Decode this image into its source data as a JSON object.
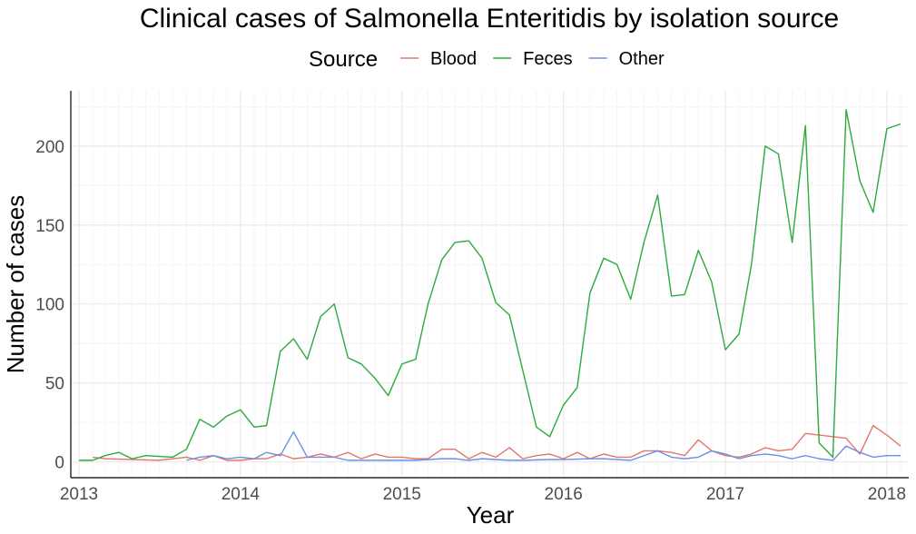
{
  "chart_data": {
    "type": "line",
    "title": "Clinical cases of Salmonella Enteritidis by isolation source",
    "xlabel": "Year",
    "ylabel": "Number of cases",
    "legend_title": "Source",
    "legend_position": "top",
    "xlim": [
      "2013-01-01",
      "2018-02-01"
    ],
    "ylim": [
      -10,
      235
    ],
    "x_ticks": [
      {
        "label": "2013",
        "date": "2013-01-01"
      },
      {
        "label": "2014",
        "date": "2014-01-01"
      },
      {
        "label": "2015",
        "date": "2015-01-01"
      },
      {
        "label": "2016",
        "date": "2016-01-01"
      },
      {
        "label": "2017",
        "date": "2017-01-01"
      },
      {
        "label": "2018",
        "date": "2018-01-01"
      }
    ],
    "y_ticks": [
      0,
      50,
      100,
      150,
      200
    ],
    "grid": true,
    "series": [
      {
        "name": "Blood",
        "color": "#e5756b",
        "points": [
          [
            "2013-02-01",
            3
          ],
          [
            "2013-03-01",
            2
          ],
          [
            "2013-05-01",
            1.5
          ],
          [
            "2013-07-01",
            1
          ],
          [
            "2013-09-01",
            3
          ],
          [
            "2013-10-01",
            1
          ],
          [
            "2013-11-01",
            4
          ],
          [
            "2013-12-01",
            1
          ],
          [
            "2014-01-01",
            1
          ],
          [
            "2014-02-01",
            2
          ],
          [
            "2014-03-01",
            2
          ],
          [
            "2014-04-01",
            5
          ],
          [
            "2014-05-01",
            2
          ],
          [
            "2014-06-01",
            3
          ],
          [
            "2014-07-01",
            5
          ],
          [
            "2014-08-01",
            3
          ],
          [
            "2014-09-01",
            6
          ],
          [
            "2014-10-01",
            2
          ],
          [
            "2014-11-01",
            5
          ],
          [
            "2014-12-01",
            3
          ],
          [
            "2015-01-01",
            3
          ],
          [
            "2015-02-01",
            2
          ],
          [
            "2015-03-01",
            2
          ],
          [
            "2015-04-01",
            8
          ],
          [
            "2015-05-01",
            8
          ],
          [
            "2015-06-01",
            2
          ],
          [
            "2015-07-01",
            6
          ],
          [
            "2015-08-01",
            3
          ],
          [
            "2015-09-01",
            9
          ],
          [
            "2015-10-01",
            2
          ],
          [
            "2015-11-01",
            4
          ],
          [
            "2015-12-01",
            5
          ],
          [
            "2016-01-01",
            2
          ],
          [
            "2016-02-01",
            6
          ],
          [
            "2016-03-01",
            2
          ],
          [
            "2016-04-01",
            5
          ],
          [
            "2016-05-01",
            3
          ],
          [
            "2016-06-01",
            3
          ],
          [
            "2016-07-01",
            7
          ],
          [
            "2016-08-01",
            7
          ],
          [
            "2016-09-01",
            6
          ],
          [
            "2016-10-01",
            4
          ],
          [
            "2016-11-01",
            14
          ],
          [
            "2016-12-01",
            7
          ],
          [
            "2017-01-01",
            4
          ],
          [
            "2017-02-01",
            3
          ],
          [
            "2017-03-01",
            5
          ],
          [
            "2017-04-01",
            9
          ],
          [
            "2017-05-01",
            7
          ],
          [
            "2017-06-01",
            8
          ],
          [
            "2017-07-01",
            18
          ],
          [
            "2017-08-01",
            17
          ],
          [
            "2017-09-01",
            16
          ],
          [
            "2017-10-01",
            15
          ],
          [
            "2017-11-01",
            5
          ],
          [
            "2017-12-01",
            23
          ],
          [
            "2018-01-01",
            17
          ],
          [
            "2018-02-01",
            10
          ]
        ]
      },
      {
        "name": "Feces",
        "color": "#2aab3e",
        "points": [
          [
            "2013-01-01",
            1
          ],
          [
            "2013-02-01",
            1
          ],
          [
            "2013-03-01",
            4
          ],
          [
            "2013-04-01",
            6
          ],
          [
            "2013-05-01",
            2
          ],
          [
            "2013-06-01",
            4
          ],
          [
            "2013-08-01",
            3
          ],
          [
            "2013-09-01",
            8
          ],
          [
            "2013-10-01",
            27
          ],
          [
            "2013-11-01",
            22
          ],
          [
            "2013-12-01",
            29
          ],
          [
            "2014-01-01",
            33
          ],
          [
            "2014-02-01",
            22
          ],
          [
            "2014-03-01",
            23
          ],
          [
            "2014-04-01",
            70
          ],
          [
            "2014-05-01",
            78
          ],
          [
            "2014-06-01",
            65
          ],
          [
            "2014-07-01",
            92
          ],
          [
            "2014-08-01",
            100
          ],
          [
            "2014-09-01",
            66
          ],
          [
            "2014-10-01",
            62
          ],
          [
            "2014-11-01",
            53
          ],
          [
            "2014-12-01",
            42
          ],
          [
            "2015-01-01",
            62
          ],
          [
            "2015-02-01",
            65
          ],
          [
            "2015-03-01",
            100
          ],
          [
            "2015-04-01",
            128
          ],
          [
            "2015-05-01",
            139
          ],
          [
            "2015-06-01",
            140
          ],
          [
            "2015-07-01",
            129
          ],
          [
            "2015-08-01",
            101
          ],
          [
            "2015-09-01",
            93
          ],
          [
            "2015-10-01",
            58
          ],
          [
            "2015-11-01",
            22
          ],
          [
            "2015-12-01",
            16
          ],
          [
            "2016-01-01",
            36
          ],
          [
            "2016-02-01",
            47
          ],
          [
            "2016-03-01",
            107
          ],
          [
            "2016-04-01",
            129
          ],
          [
            "2016-05-01",
            125
          ],
          [
            "2016-06-01",
            103
          ],
          [
            "2016-07-01",
            139
          ],
          [
            "2016-08-01",
            169
          ],
          [
            "2016-09-01",
            105
          ],
          [
            "2016-10-01",
            106
          ],
          [
            "2016-11-01",
            134
          ],
          [
            "2016-12-01",
            114
          ],
          [
            "2017-01-01",
            71
          ],
          [
            "2017-02-01",
            81
          ],
          [
            "2017-03-01",
            125
          ],
          [
            "2017-04-01",
            200
          ],
          [
            "2017-05-01",
            195
          ],
          [
            "2017-06-01",
            139
          ],
          [
            "2017-07-01",
            213
          ],
          [
            "2017-08-01",
            12
          ],
          [
            "2017-09-01",
            3
          ],
          [
            "2017-10-01",
            223
          ],
          [
            "2017-11-01",
            178
          ],
          [
            "2017-12-01",
            158
          ],
          [
            "2018-01-01",
            211
          ],
          [
            "2018-02-01",
            214
          ]
        ]
      },
      {
        "name": "Other",
        "color": "#6b8fe8",
        "points": [
          [
            "2013-09-01",
            1
          ],
          [
            "2013-10-01",
            3
          ],
          [
            "2013-11-01",
            4
          ],
          [
            "2013-12-01",
            2
          ],
          [
            "2014-01-01",
            3
          ],
          [
            "2014-02-01",
            2
          ],
          [
            "2014-03-01",
            6
          ],
          [
            "2014-04-01",
            4
          ],
          [
            "2014-05-01",
            19
          ],
          [
            "2014-06-01",
            3
          ],
          [
            "2014-07-01",
            3
          ],
          [
            "2014-08-01",
            3
          ],
          [
            "2014-09-01",
            1
          ],
          [
            "2014-10-01",
            1
          ],
          [
            "2014-12-01",
            1
          ],
          [
            "2015-02-01",
            1
          ],
          [
            "2015-04-01",
            2
          ],
          [
            "2015-05-01",
            2
          ],
          [
            "2015-06-01",
            1
          ],
          [
            "2015-07-01",
            2
          ],
          [
            "2015-09-01",
            1
          ],
          [
            "2015-10-01",
            1
          ],
          [
            "2015-12-01",
            1.5
          ],
          [
            "2016-01-01",
            1.5
          ],
          [
            "2016-03-01",
            2
          ],
          [
            "2016-04-01",
            2
          ],
          [
            "2016-06-01",
            1
          ],
          [
            "2016-08-01",
            7
          ],
          [
            "2016-09-01",
            3
          ],
          [
            "2016-10-01",
            2
          ],
          [
            "2016-11-01",
            3
          ],
          [
            "2016-12-01",
            7
          ],
          [
            "2017-01-01",
            5
          ],
          [
            "2017-02-01",
            2
          ],
          [
            "2017-03-01",
            4
          ],
          [
            "2017-04-01",
            5
          ],
          [
            "2017-05-01",
            4
          ],
          [
            "2017-06-01",
            2
          ],
          [
            "2017-07-01",
            4
          ],
          [
            "2017-08-01",
            2
          ],
          [
            "2017-09-01",
            1
          ],
          [
            "2017-10-01",
            10
          ],
          [
            "2017-11-01",
            6
          ],
          [
            "2017-12-01",
            3
          ],
          [
            "2018-01-01",
            4
          ],
          [
            "2018-02-01",
            4
          ]
        ]
      }
    ]
  }
}
